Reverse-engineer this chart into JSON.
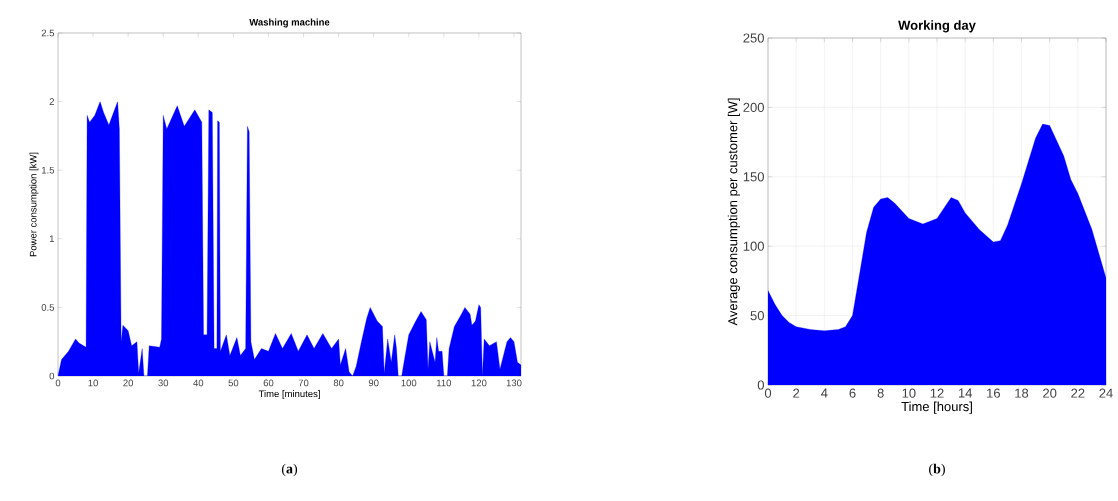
{
  "chart_data": [
    {
      "type": "area",
      "title": "Washing machine",
      "xlabel": "Time [minutes]",
      "ylabel": "Power consumption [kW]",
      "annotations": [
        "(**a**)"
      ],
      "xlim": [
        0,
        132
      ],
      "xticks": [
        0,
        10,
        20,
        30,
        40,
        50,
        60,
        70,
        80,
        90,
        100,
        110,
        120,
        130
      ],
      "ylim": [
        0,
        2.5
      ],
      "yticks": [
        0,
        0.5,
        1,
        1.5,
        2,
        2.5
      ],
      "series": [
        {
          "color": "#0000ff",
          "x": [
            0,
            1,
            3,
            5,
            6,
            8,
            8.3,
            9,
            10.5,
            12,
            13,
            14.5,
            17,
            17.5,
            18,
            18.5,
            20,
            21,
            22.5,
            23,
            24,
            24.5,
            25.5,
            26,
            29,
            29.5,
            30,
            31,
            34,
            36,
            39,
            41,
            41.5,
            42.5,
            43,
            44,
            44.5,
            45.3,
            45.5,
            46,
            46.3,
            48,
            49,
            51,
            52,
            53.5,
            54,
            54.5,
            55,
            56,
            58,
            60,
            62,
            64,
            66.5,
            68.5,
            71,
            73,
            75.5,
            78,
            80,
            80.5,
            82,
            83,
            84,
            85,
            86.5,
            88,
            89,
            91,
            92.5,
            93,
            94,
            95,
            96,
            96.5,
            97,
            98,
            98.5,
            100,
            102,
            103.5,
            105,
            105.5,
            106,
            107.5,
            108,
            108.5,
            109.5,
            110,
            111,
            111.5,
            113,
            115,
            116,
            117.5,
            118,
            119,
            120,
            120.5,
            121,
            121.5,
            123,
            125,
            126,
            128,
            129,
            130,
            131,
            132
          ],
          "values": [
            0,
            0.12,
            0.18,
            0.27,
            0.24,
            0.21,
            1.9,
            1.85,
            1.9,
            2.0,
            1.92,
            1.83,
            2.0,
            1.8,
            0.25,
            0.37,
            0.33,
            0.22,
            0.25,
            0.02,
            0.2,
            0,
            0,
            0.22,
            0.21,
            0.27,
            1.9,
            1.8,
            1.97,
            1.82,
            1.94,
            1.85,
            0.3,
            0.3,
            1.94,
            1.92,
            0.2,
            0.2,
            1.86,
            1.85,
            0.18,
            0.3,
            0.15,
            0.28,
            0.15,
            0.2,
            1.82,
            1.78,
            0.25,
            0.12,
            0.2,
            0.18,
            0.31,
            0.2,
            0.31,
            0.18,
            0.3,
            0.2,
            0.31,
            0.2,
            0.27,
            0.08,
            0.2,
            0.03,
            0,
            0.07,
            0.25,
            0.42,
            0.5,
            0.4,
            0.36,
            0.02,
            0.27,
            0.1,
            0.3,
            0.2,
            0,
            0,
            0.08,
            0.3,
            0.4,
            0.47,
            0.41,
            0.05,
            0.25,
            0.1,
            0.28,
            0.18,
            0.18,
            0,
            0,
            0.2,
            0.36,
            0.45,
            0.5,
            0.45,
            0.37,
            0.4,
            0.52,
            0.5,
            0,
            0.27,
            0.22,
            0.25,
            0.05,
            0.25,
            0.28,
            0.25,
            0.1,
            0.08
          ]
        }
      ]
    },
    {
      "type": "area",
      "title": "Working day",
      "xlabel": "Time [hours]",
      "ylabel": "Average consumption per customer [W]",
      "annotations": [
        "(**b**)"
      ],
      "grid": true,
      "xlim": [
        0,
        24
      ],
      "xticks": [
        0,
        2,
        4,
        6,
        8,
        10,
        12,
        14,
        16,
        18,
        20,
        22,
        24
      ],
      "ylim": [
        0,
        250
      ],
      "yticks": [
        0,
        50,
        100,
        150,
        200,
        250
      ],
      "series": [
        {
          "color": "#0000ff",
          "x": [
            0,
            0.5,
            1,
            1.5,
            2,
            3,
            4,
            5,
            5.5,
            6,
            6.5,
            7,
            7.5,
            8,
            8.5,
            9,
            10,
            11,
            12,
            13,
            13.5,
            14,
            15,
            16,
            16.5,
            17,
            18,
            19,
            19.5,
            20,
            21,
            21.5,
            22,
            23,
            24
          ],
          "values": [
            68,
            58,
            50,
            45,
            42,
            40,
            39,
            40,
            42,
            50,
            80,
            110,
            128,
            134,
            135,
            131,
            120,
            116,
            120,
            135,
            133,
            124,
            112,
            103,
            104,
            115,
            145,
            178,
            188,
            187,
            165,
            148,
            138,
            112,
            77
          ]
        }
      ]
    }
  ]
}
